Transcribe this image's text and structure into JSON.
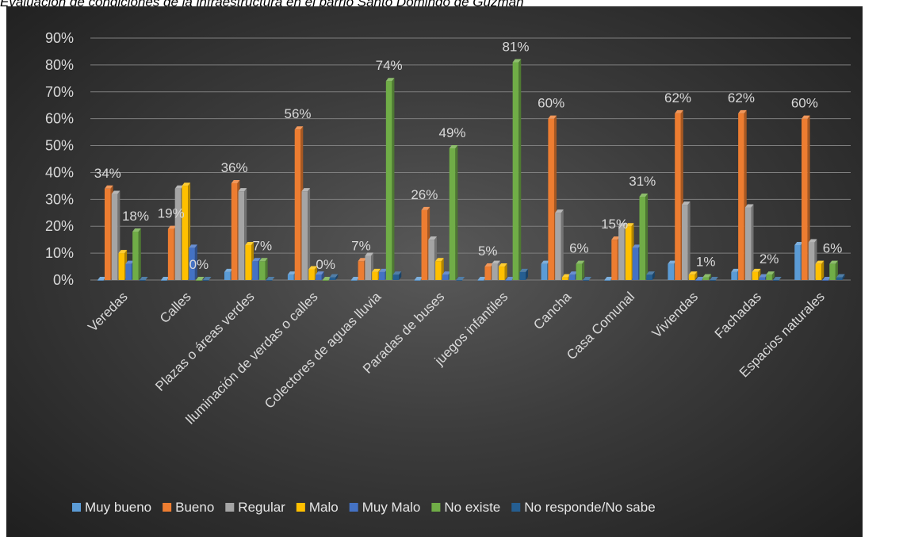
{
  "page": {
    "title": "Evaluación de condiciones de la infraestructura en el barrio Santo Domingo de Guzmán"
  },
  "chart_data": {
    "type": "bar",
    "title": "",
    "xlabel": "",
    "ylabel": "",
    "ylim": [
      0,
      90
    ],
    "yticks": [
      "0%",
      "10%",
      "20%",
      "30%",
      "40%",
      "50%",
      "60%",
      "70%",
      "80%",
      "90%"
    ],
    "grid": true,
    "legend_position": "bottom",
    "style": "3d-clustered-bar",
    "categories": [
      "Veredas",
      "Calles",
      "Plazas o áreas verdes",
      "Iluminación de verdas o calles",
      "Colectores de aguas lluvia",
      "Paradas de buses",
      "juegos infantiles",
      "Cancha",
      "Casa Comunal",
      "Viviendas",
      "Fachadas",
      "Espacios naturales"
    ],
    "series": [
      {
        "name": "Muy bueno",
        "color": "#5b9bd5",
        "values": [
          0,
          0,
          3,
          2,
          0,
          0,
          0,
          6,
          0,
          6,
          3,
          13
        ]
      },
      {
        "name": "Bueno",
        "color": "#ed7d31",
        "values": [
          34,
          19,
          36,
          56,
          7,
          26,
          5,
          60,
          15,
          62,
          62,
          60
        ]
      },
      {
        "name": "Regular",
        "color": "#a5a5a5",
        "values": [
          32,
          34,
          33,
          33,
          9,
          15,
          6,
          25,
          20,
          28,
          27,
          14
        ]
      },
      {
        "name": "Malo",
        "color": "#ffc000",
        "values": [
          10,
          35,
          13,
          4,
          3,
          7,
          5,
          1,
          20,
          2,
          3,
          6
        ]
      },
      {
        "name": "Muy Malo",
        "color": "#4472c4",
        "values": [
          6,
          12,
          7,
          2,
          3,
          2,
          0,
          2,
          12,
          0,
          1,
          0
        ]
      },
      {
        "name": "No existe",
        "color": "#70ad47",
        "values": [
          18,
          0,
          7,
          0,
          74,
          49,
          81,
          6,
          31,
          1,
          2,
          6
        ]
      },
      {
        "name": "No responde/No sabe",
        "color": "#255e91",
        "values": [
          0,
          0,
          0,
          1,
          2,
          0,
          3,
          0,
          2,
          0,
          0,
          1
        ]
      }
    ],
    "data_labels": [
      {
        "category": "Veredas",
        "series": "Bueno",
        "text": "34%"
      },
      {
        "category": "Veredas",
        "series": "No existe",
        "text": "18%"
      },
      {
        "category": "Calles",
        "series": "Bueno",
        "text": "19%"
      },
      {
        "category": "Calles",
        "series": "No existe",
        "text": "0%"
      },
      {
        "category": "Plazas o áreas verdes",
        "series": "Bueno",
        "text": "36%"
      },
      {
        "category": "Plazas o áreas verdes",
        "series": "No existe",
        "text": "7%"
      },
      {
        "category": "Iluminación de verdas o calles",
        "series": "Bueno",
        "text": "56%"
      },
      {
        "category": "Iluminación de verdas o calles",
        "series": "No existe",
        "text": "0%"
      },
      {
        "category": "Colectores de aguas lluvia",
        "series": "Bueno",
        "text": "7%"
      },
      {
        "category": "Colectores de aguas lluvia",
        "series": "No existe",
        "text": "74%"
      },
      {
        "category": "Paradas de buses",
        "series": "Bueno",
        "text": "26%"
      },
      {
        "category": "Paradas de buses",
        "series": "No existe",
        "text": "49%"
      },
      {
        "category": "juegos infantiles",
        "series": "Bueno",
        "text": "5%"
      },
      {
        "category": "juegos infantiles",
        "series": "No existe",
        "text": "81%"
      },
      {
        "category": "Cancha",
        "series": "Bueno",
        "text": "60%"
      },
      {
        "category": "Cancha",
        "series": "No existe",
        "text": "6%"
      },
      {
        "category": "Casa Comunal",
        "series": "Bueno",
        "text": "15%"
      },
      {
        "category": "Casa Comunal",
        "series": "No existe",
        "text": "31%"
      },
      {
        "category": "Viviendas",
        "series": "Bueno",
        "text": "62%"
      },
      {
        "category": "Viviendas",
        "series": "No existe",
        "text": "1%"
      },
      {
        "category": "Fachadas",
        "series": "Bueno",
        "text": "62%"
      },
      {
        "category": "Fachadas",
        "series": "No existe",
        "text": "2%"
      },
      {
        "category": "Espacios naturales",
        "series": "Bueno",
        "text": "60%"
      },
      {
        "category": "Espacios naturales",
        "series": "No existe",
        "text": "6%"
      }
    ]
  }
}
